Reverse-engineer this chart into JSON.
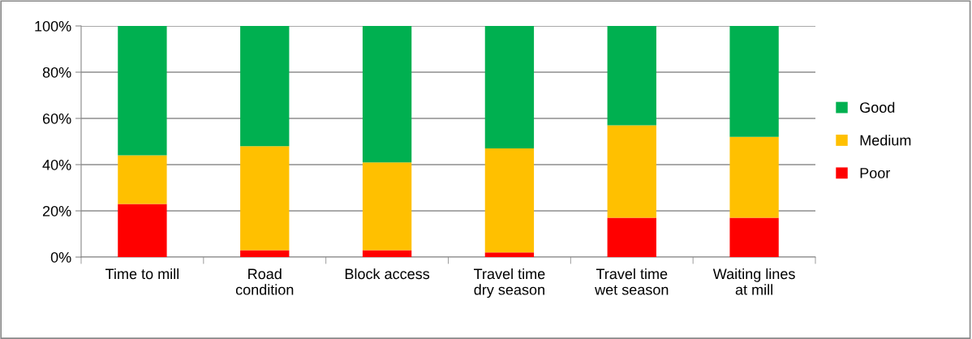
{
  "chart_data": {
    "type": "bar",
    "stacked": true,
    "categories": [
      "Time to mill",
      "Road\ncondition",
      "Block access",
      "Travel time\ndry season",
      "Travel time\nwet season",
      "Waiting lines\nat mill"
    ],
    "series": [
      {
        "name": "Poor",
        "color": "#ff0000",
        "values": [
          23,
          3,
          3,
          2,
          17,
          17
        ]
      },
      {
        "name": "Medium",
        "color": "#ffc000",
        "values": [
          21,
          45,
          38,
          45,
          40,
          35
        ]
      },
      {
        "name": "Good",
        "color": "#00b050",
        "values": [
          56,
          52,
          59,
          53,
          43,
          48
        ]
      }
    ],
    "ylim": [
      0,
      100
    ],
    "yticks": [
      {
        "value": 0,
        "label": "0%"
      },
      {
        "value": 20,
        "label": "20%"
      },
      {
        "value": 40,
        "label": "40%"
      },
      {
        "value": 60,
        "label": "60%"
      },
      {
        "value": 80,
        "label": "80%"
      },
      {
        "value": 100,
        "label": "100%"
      }
    ],
    "grid": "y",
    "legend": "right"
  }
}
